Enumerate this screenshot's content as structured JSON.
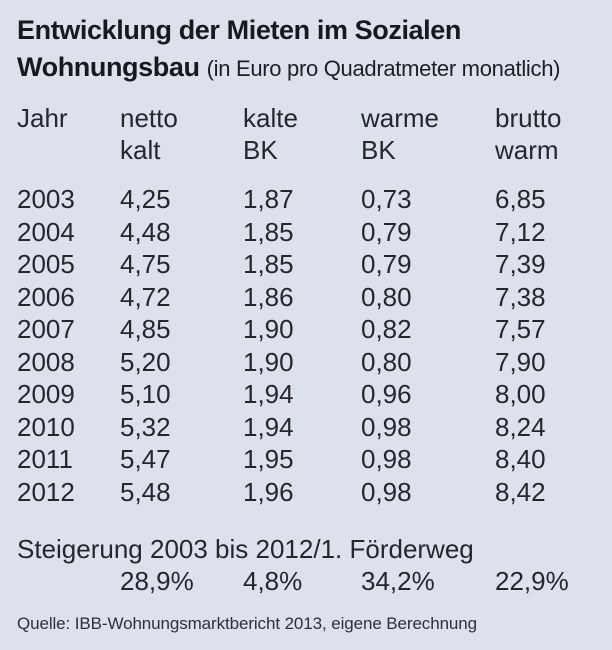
{
  "colors": {
    "background": "#dde1ec",
    "text": "#25272e",
    "title": "#17191f"
  },
  "title": {
    "line1": "Entwicklung der Mieten im Sozialen",
    "line2_bold": "Wohnungsbau",
    "line2_rest": "(in Euro pro Quadratmeter monatlich)"
  },
  "header": {
    "cols": [
      {
        "l1": "Jahr",
        "l2": ""
      },
      {
        "l1": "netto",
        "l2": "kalt"
      },
      {
        "l1": "kalte",
        "l2": "BK"
      },
      {
        "l1": "warme",
        "l2": "BK"
      },
      {
        "l1": "brutto",
        "l2": "warm"
      }
    ]
  },
  "summary": {
    "label": "Steigerung 2003 bis 2012/1. Förderweg",
    "values": [
      "28,9%",
      "4,8%",
      "34,2%",
      "22,9%"
    ]
  },
  "source": {
    "text": "Quelle: IBB-Wohnungsmarktbericht 2013, eigene Berechnung"
  },
  "chart_data": {
    "type": "table",
    "title": "Entwicklung der Mieten im Sozialen Wohnungsbau",
    "subtitle": "(in Euro pro Quadratmeter monatlich)",
    "columns": [
      "Jahr",
      "netto kalt",
      "kalte BK",
      "warme BK",
      "brutto warm"
    ],
    "rows": [
      [
        "2003",
        "4,25",
        "1,87",
        "0,73",
        "6,85"
      ],
      [
        "2004",
        "4,48",
        "1,85",
        "0,79",
        "7,12"
      ],
      [
        "2005",
        "4,75",
        "1,85",
        "0,79",
        "7,39"
      ],
      [
        "2006",
        "4,72",
        "1,86",
        "0,80",
        "7,38"
      ],
      [
        "2007",
        "4,85",
        "1,90",
        "0,82",
        "7,57"
      ],
      [
        "2008",
        "5,20",
        "1,90",
        "0,80",
        "7,90"
      ],
      [
        "2009",
        "5,10",
        "1,94",
        "0,96",
        "8,00"
      ],
      [
        "2010",
        "5,32",
        "1,94",
        "0,98",
        "8,24"
      ],
      [
        "2011",
        "5,47",
        "1,95",
        "0,98",
        "8,40"
      ],
      [
        "2012",
        "5,48",
        "1,96",
        "0,98",
        "8,42"
      ]
    ],
    "summary_label": "Steigerung 2003 bis 2012/1. Förderweg",
    "summary_values": [
      "28,9%",
      "4,8%",
      "34,2%",
      "22,9%"
    ],
    "source": "Quelle: IBB-Wohnungsmarktbericht 2013, eigene Berechnung"
  }
}
